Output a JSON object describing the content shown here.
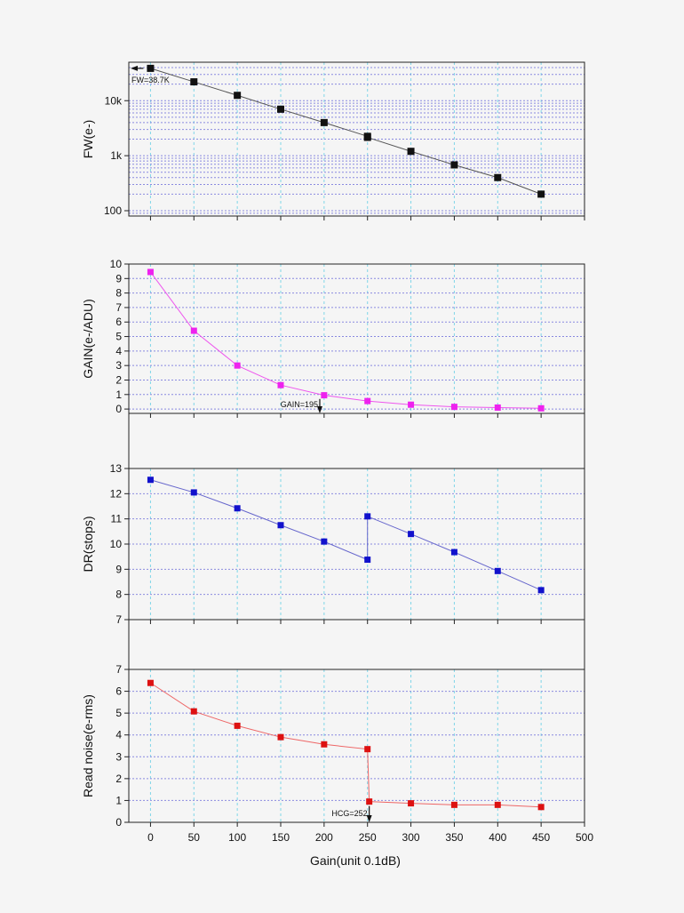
{
  "chart_data": {
    "type": "line",
    "xlabel": "Gain(unit 0.1dB)",
    "xlim": [
      -25,
      500
    ],
    "xticks": [
      0,
      50,
      100,
      150,
      200,
      250,
      300,
      350,
      400,
      450,
      500
    ],
    "grid": true,
    "panels": [
      {
        "id": "fw",
        "ylabel": "FW(e-)",
        "yscale": "log",
        "ylim": [
          80,
          50000
        ],
        "yticks": [
          {
            "value": 100,
            "label": "100"
          },
          {
            "value": 1000,
            "label": "1k"
          },
          {
            "value": 10000,
            "label": "10k"
          }
        ],
        "color": "#111111",
        "line_color": "#555555",
        "series": [
          {
            "x": [
              0,
              50,
              100,
              150,
              200,
              250,
              250,
              300,
              350,
              400,
              450
            ],
            "y": [
              38700,
              22000,
              12500,
              7000,
              4000,
              2250,
              2150,
              1200,
              680,
              400,
              200
            ]
          }
        ],
        "annotation": {
          "label": "FW=38.7K",
          "x": 0,
          "y": 38700,
          "arrow": "left"
        }
      },
      {
        "id": "gain",
        "ylabel": "GAIN(e-/ADU)",
        "yscale": "linear",
        "ylim": [
          -0.3,
          10
        ],
        "yticks": [
          {
            "value": 0,
            "label": "0"
          },
          {
            "value": 1,
            "label": "1"
          },
          {
            "value": 2,
            "label": "2"
          },
          {
            "value": 3,
            "label": "3"
          },
          {
            "value": 4,
            "label": "4"
          },
          {
            "value": 5,
            "label": "5"
          },
          {
            "value": 6,
            "label": "6"
          },
          {
            "value": 7,
            "label": "7"
          },
          {
            "value": 8,
            "label": "8"
          },
          {
            "value": 9,
            "label": "9"
          },
          {
            "value": 10,
            "label": "10"
          }
        ],
        "color": "#ee22ee",
        "line_color": "#ee55ee",
        "series": [
          {
            "x": [
              0,
              50,
              100,
              150,
              200,
              250,
              300,
              350,
              400,
              450
            ],
            "y": [
              9.45,
              5.4,
              3.0,
              1.65,
              0.95,
              0.55,
              0.3,
              0.15,
              0.1,
              0.05
            ]
          }
        ],
        "annotation": {
          "label": "GAIN=195",
          "x": 195,
          "y": 1.0,
          "arrow": "down"
        }
      },
      {
        "id": "dr",
        "ylabel": "DR(stops)",
        "yscale": "linear",
        "ylim": [
          7,
          13
        ],
        "yticks": [
          {
            "value": 7,
            "label": "7"
          },
          {
            "value": 8,
            "label": "8"
          },
          {
            "value": 9,
            "label": "9"
          },
          {
            "value": 10,
            "label": "10"
          },
          {
            "value": 11,
            "label": "11"
          },
          {
            "value": 12,
            "label": "12"
          },
          {
            "value": 13,
            "label": "13"
          }
        ],
        "color": "#1111cc",
        "line_color": "#6666cc",
        "series": [
          {
            "x": [
              0,
              50,
              100,
              150,
              200,
              250,
              250,
              300,
              350,
              400,
              450
            ],
            "y": [
              12.55,
              12.05,
              11.42,
              10.75,
              10.1,
              9.38,
              11.1,
              10.4,
              9.68,
              8.93,
              8.17
            ]
          }
        ]
      },
      {
        "id": "rn",
        "ylabel": "Read noise(e-rms)",
        "yscale": "linear",
        "ylim": [
          0,
          7
        ],
        "yticks": [
          {
            "value": 0,
            "label": "0"
          },
          {
            "value": 1,
            "label": "1"
          },
          {
            "value": 2,
            "label": "2"
          },
          {
            "value": 3,
            "label": "3"
          },
          {
            "value": 4,
            "label": "4"
          },
          {
            "value": 5,
            "label": "5"
          },
          {
            "value": 6,
            "label": "6"
          },
          {
            "value": 7,
            "label": "7"
          }
        ],
        "color": "#dd1111",
        "line_color": "#ee6666",
        "series": [
          {
            "x": [
              0,
              50,
              100,
              150,
              200,
              250,
              252,
              300,
              350,
              400,
              450
            ],
            "y": [
              6.38,
              5.08,
              4.42,
              3.9,
              3.57,
              3.35,
              0.95,
              0.87,
              0.8,
              0.8,
              0.7
            ]
          }
        ],
        "annotation": {
          "label": "HCG=252",
          "x": 252,
          "y": 0.95,
          "arrow": "down"
        }
      }
    ]
  }
}
